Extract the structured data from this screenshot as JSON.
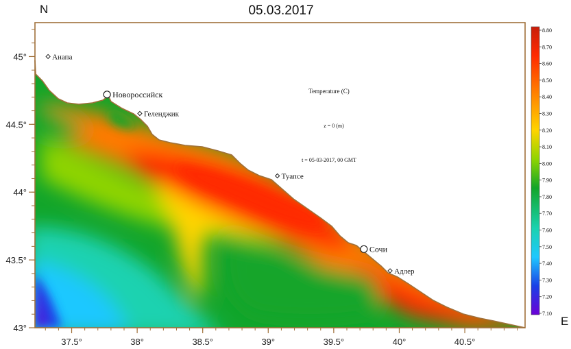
{
  "title": "05.03.2017",
  "north_label": "N",
  "east_label": "E",
  "annotations": {
    "parameter": "Temperature (C)",
    "depth": "z = 0 (m)",
    "time": "t = 05-03-2017, 00 GMT"
  },
  "axes": {
    "lat_ticks": [
      {
        "value": 45.0,
        "label": "45°"
      },
      {
        "value": 44.5,
        "label": "44.5°"
      },
      {
        "value": 44.0,
        "label": "44°"
      },
      {
        "value": 43.5,
        "label": "43.5°"
      },
      {
        "value": 43.0,
        "label": "43°"
      }
    ],
    "lon_ticks": [
      {
        "value": 37.5,
        "label": "37.5°"
      },
      {
        "value": 38.0,
        "label": "38°"
      },
      {
        "value": 38.5,
        "label": "38.5°"
      },
      {
        "value": 39.0,
        "label": "39°"
      },
      {
        "value": 39.5,
        "label": "39.5°"
      },
      {
        "value": 40.0,
        "label": "40°"
      },
      {
        "value": 40.5,
        "label": "40.5°"
      }
    ],
    "lon_range": [
      37.22,
      40.96
    ],
    "lat_range": [
      43.0,
      45.25
    ]
  },
  "cities": [
    {
      "name": "Анапа",
      "lon": 37.32,
      "lat": 45.0,
      "marker": "diamond"
    },
    {
      "name": "Новороссийск",
      "lon": 37.77,
      "lat": 44.72,
      "marker": "circle"
    },
    {
      "name": "Геленджик",
      "lon": 38.02,
      "lat": 44.58,
      "marker": "diamond"
    },
    {
      "name": "Туапсе",
      "lon": 39.07,
      "lat": 44.12,
      "marker": "diamond"
    },
    {
      "name": "Сочи",
      "lon": 39.73,
      "lat": 43.58,
      "marker": "circle"
    },
    {
      "name": "Адлер",
      "lon": 39.93,
      "lat": 43.42,
      "marker": "diamond"
    }
  ],
  "colorbar": {
    "labels": [
      "8.80",
      "8.70",
      "8.60",
      "8.50",
      "8.40",
      "8.30",
      "8.20",
      "8.10",
      "8.00",
      "7.90",
      "7.80",
      "7.70",
      "7.60",
      "7.50",
      "7.40",
      "7.30",
      "7.20",
      "7.10"
    ],
    "min": 7.1,
    "max": 8.8,
    "colors": [
      "#c81e0a",
      "#ff2a00",
      "#ff7a00",
      "#ffd400",
      "#8fd400",
      "#12a52a",
      "#1ad2b0",
      "#1ec8ff",
      "#1a40e6",
      "#6a00d6"
    ]
  },
  "style": {
    "coast_color": "#a0703a",
    "land_color": "#ffffff"
  }
}
